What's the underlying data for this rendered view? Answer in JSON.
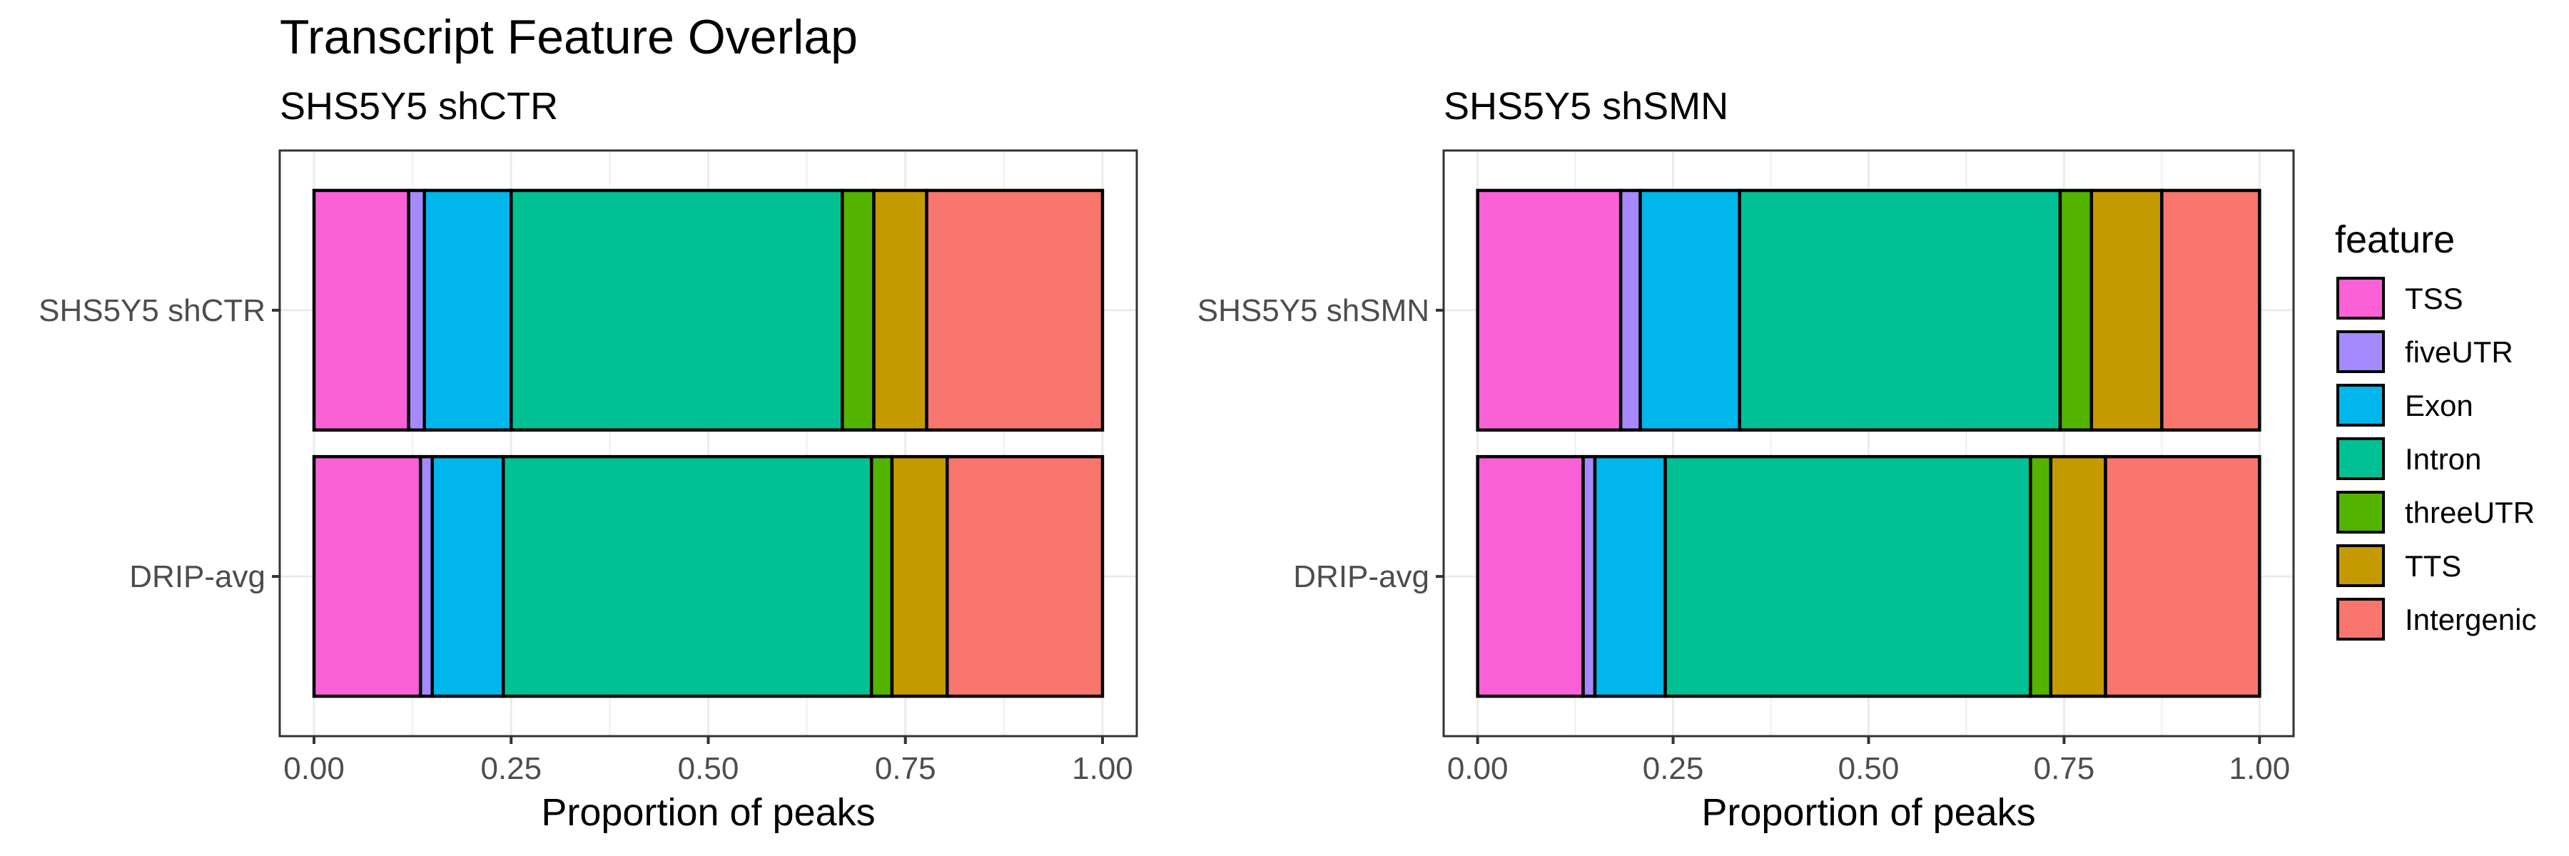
{
  "chart_data": {
    "type": "bar",
    "orientation": "horizontal",
    "stacked": true,
    "title": "Transcript Feature Overlap",
    "xlabel": "Proportion of peaks",
    "xlim": [
      0,
      1
    ],
    "x_ticks": [
      "0.00",
      "0.25",
      "0.50",
      "0.75",
      "1.00"
    ],
    "grid": true,
    "legend": {
      "title": "feature",
      "position": "right",
      "entries": [
        "TSS",
        "fiveUTR",
        "Exon",
        "Intron",
        "threeUTR",
        "TTS",
        "Intergenic"
      ]
    },
    "colors": {
      "TSS": "#FB61D7",
      "fiveUTR": "#A58AFF",
      "Exon": "#00B6EB",
      "Intron": "#00C094",
      "threeUTR": "#53B400",
      "TTS": "#C49A00",
      "Intergenic": "#F8766D"
    },
    "panels": [
      {
        "subtitle": "SHS5Y5 shCTR",
        "categories": [
          "SHS5Y5 shCTR",
          "DRIP-avg"
        ],
        "series": [
          {
            "name": "TSS",
            "values": [
              0.12,
              0.135
            ]
          },
          {
            "name": "fiveUTR",
            "values": [
              0.02,
              0.015
            ]
          },
          {
            "name": "Exon",
            "values": [
              0.11,
              0.09
            ]
          },
          {
            "name": "Intron",
            "values": [
              0.42,
              0.467
            ]
          },
          {
            "name": "threeUTR",
            "values": [
              0.04,
              0.026
            ]
          },
          {
            "name": "TTS",
            "values": [
              0.067,
              0.07
            ]
          },
          {
            "name": "Intergenic",
            "values": [
              0.223,
              0.197
            ]
          }
        ]
      },
      {
        "subtitle": "SHS5Y5 shSMN",
        "categories": [
          "SHS5Y5 shSMN",
          "DRIP-avg"
        ],
        "series": [
          {
            "name": "TSS",
            "values": [
              0.183,
              0.135
            ]
          },
          {
            "name": "fiveUTR",
            "values": [
              0.025,
              0.015
            ]
          },
          {
            "name": "Exon",
            "values": [
              0.127,
              0.09
            ]
          },
          {
            "name": "Intron",
            "values": [
              0.41,
              0.467
            ]
          },
          {
            "name": "threeUTR",
            "values": [
              0.04,
              0.026
            ]
          },
          {
            "name": "TTS",
            "values": [
              0.09,
              0.07
            ]
          },
          {
            "name": "Intergenic",
            "values": [
              0.125,
              0.197
            ]
          }
        ]
      }
    ]
  }
}
